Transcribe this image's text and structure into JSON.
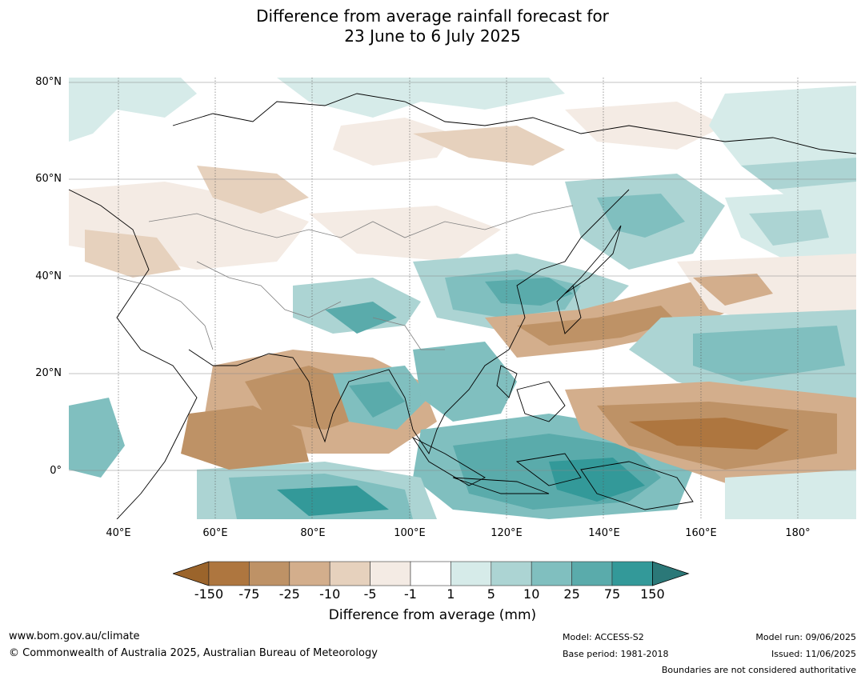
{
  "title": {
    "line1": "Difference from average rainfall forecast for",
    "line2": "23 June to 6 July 2025"
  },
  "map": {
    "lat_labels": [
      "80°N",
      "60°N",
      "40°N",
      "20°N",
      "0°"
    ],
    "lon_labels": [
      "40°E",
      "60°E",
      "80°E",
      "100°E",
      "120°E",
      "140°E",
      "160°E",
      "180°"
    ],
    "extent": {
      "lon_min": 30,
      "lon_max": 192,
      "lat_min": -10,
      "lat_max": 81
    }
  },
  "colorbar": {
    "ticks": [
      "-150",
      "-75",
      "-25",
      "-10",
      "-5",
      "-1",
      "1",
      "5",
      "10",
      "25",
      "75",
      "150"
    ],
    "colors": [
      "#9b642b",
      "#ae763f",
      "#be9266",
      "#d3ae8c",
      "#e6d1bd",
      "#f4ebe4",
      "#ffffff",
      "#d6ebe9",
      "#acd4d3",
      "#80bfbf",
      "#5aabab",
      "#339999",
      "#2b7878"
    ],
    "label": "Difference from average (mm)"
  },
  "footer": {
    "website": "www.bom.gov.au/climate",
    "copyright": "© Commonwealth of Australia 2025, Australian Bureau of Meteorology",
    "model": "Model: ACCESS-S2",
    "base_period": "Base period: 1981-2018",
    "model_run": "Model run: 09/06/2025",
    "issued": "Issued: 11/06/2025",
    "disclaimer": "Boundaries are not considered authoritative"
  }
}
